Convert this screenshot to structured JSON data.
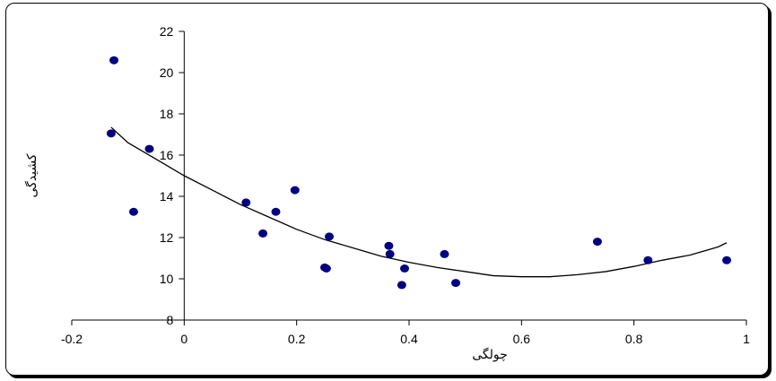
{
  "chart_data": {
    "type": "scatter",
    "title": "",
    "xlabel": "چولگی",
    "ylabel": "کشیدگی",
    "xlim": [
      -0.2,
      1
    ],
    "ylim": [
      8,
      22
    ],
    "x_ticks": [
      -0.2,
      0,
      0.2,
      0.4,
      0.6,
      0.8,
      1
    ],
    "x_tick_labels": [
      "-0.2",
      "0",
      "0.2",
      "0.4",
      "0.6",
      "0.8",
      "1"
    ],
    "y_ticks": [
      8,
      10,
      12,
      14,
      16,
      18,
      20,
      22
    ],
    "y_tick_labels": [
      "8",
      "10",
      "12",
      "14",
      "16",
      "18",
      "20",
      "22"
    ],
    "grid": false,
    "legend": "none",
    "series": [
      {
        "kind": "points",
        "color": "#000080",
        "x": [
          -0.13,
          -0.125,
          -0.09,
          -0.062,
          0.11,
          0.14,
          0.163,
          0.197,
          0.25,
          0.253,
          0.258,
          0.364,
          0.366,
          0.387,
          0.392,
          0.463,
          0.483,
          0.735,
          0.825,
          0.965
        ],
        "y": [
          17.05,
          20.6,
          13.25,
          16.3,
          13.7,
          12.2,
          13.25,
          14.3,
          10.55,
          10.5,
          12.05,
          11.6,
          11.2,
          9.7,
          10.5,
          11.2,
          9.8,
          11.8,
          10.9,
          10.9
        ]
      },
      {
        "kind": "trendline",
        "color": "#000000",
        "x": [
          -0.13,
          -0.1,
          -0.05,
          0,
          0.05,
          0.1,
          0.15,
          0.2,
          0.25,
          0.3,
          0.35,
          0.4,
          0.45,
          0.5,
          0.55,
          0.6,
          0.65,
          0.7,
          0.75,
          0.8,
          0.85,
          0.9,
          0.95,
          0.965
        ],
        "y": [
          17.35,
          16.6,
          15.8,
          15.0,
          14.3,
          13.6,
          13.0,
          12.4,
          11.9,
          11.5,
          11.1,
          10.8,
          10.55,
          10.35,
          10.15,
          10.1,
          10.1,
          10.2,
          10.35,
          10.6,
          10.9,
          11.15,
          11.55,
          11.75
        ]
      }
    ]
  }
}
